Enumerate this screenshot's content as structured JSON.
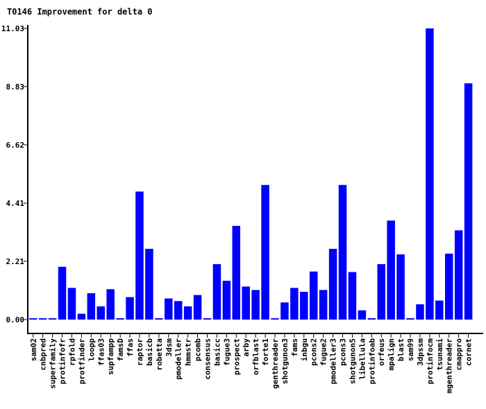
{
  "chart_data": {
    "type": "bar",
    "title": "T0146 Improvement for delta 0",
    "xlabel": "",
    "ylabel": "",
    "ylim": [
      0,
      11.03
    ],
    "yticks": [
      "0.00",
      "2.21",
      "4.41",
      "6.62",
      "8.83",
      "11.03"
    ],
    "bar_color": "#0000ff",
    "categories": [
      "sam02",
      "cnbpred",
      "superfamily",
      "protinfofr",
      "rpfold",
      "protfinder",
      "loopp",
      "ffas03",
      "supfampp",
      "famsD",
      "ffas",
      "raptor",
      "basicb",
      "robetta",
      "3dsm",
      "pmodeller",
      "hmmstr",
      "pcomb",
      "consensus",
      "basicc",
      "fugue3",
      "prospect",
      "arby",
      "orfblast",
      "forte1",
      "genthreader",
      "shotgunon3",
      "fams",
      "inbgu",
      "pcons2",
      "fugue2",
      "pmodeller3",
      "pcons3",
      "shotgunon5",
      "libellula",
      "protinfoab",
      "orfeus",
      "mpalign",
      "blast",
      "sam99",
      "3dpssm",
      "protinfocm",
      "tsunami",
      "mgenthreader",
      "cmappro",
      "cornet"
    ],
    "values": [
      0.05,
      0.05,
      0.05,
      2.0,
      1.2,
      0.22,
      1.0,
      0.5,
      1.15,
      0.05,
      0.85,
      4.85,
      2.68,
      0.05,
      0.8,
      0.7,
      0.5,
      0.93,
      0.05,
      2.1,
      1.47,
      3.55,
      1.25,
      1.12,
      5.1,
      0.05,
      0.65,
      1.2,
      1.05,
      1.82,
      1.12,
      2.68,
      5.1,
      1.8,
      0.35,
      0.05,
      2.1,
      3.75,
      2.47,
      0.05,
      0.58,
      11.03,
      0.72,
      2.5,
      3.38,
      8.95
    ]
  }
}
